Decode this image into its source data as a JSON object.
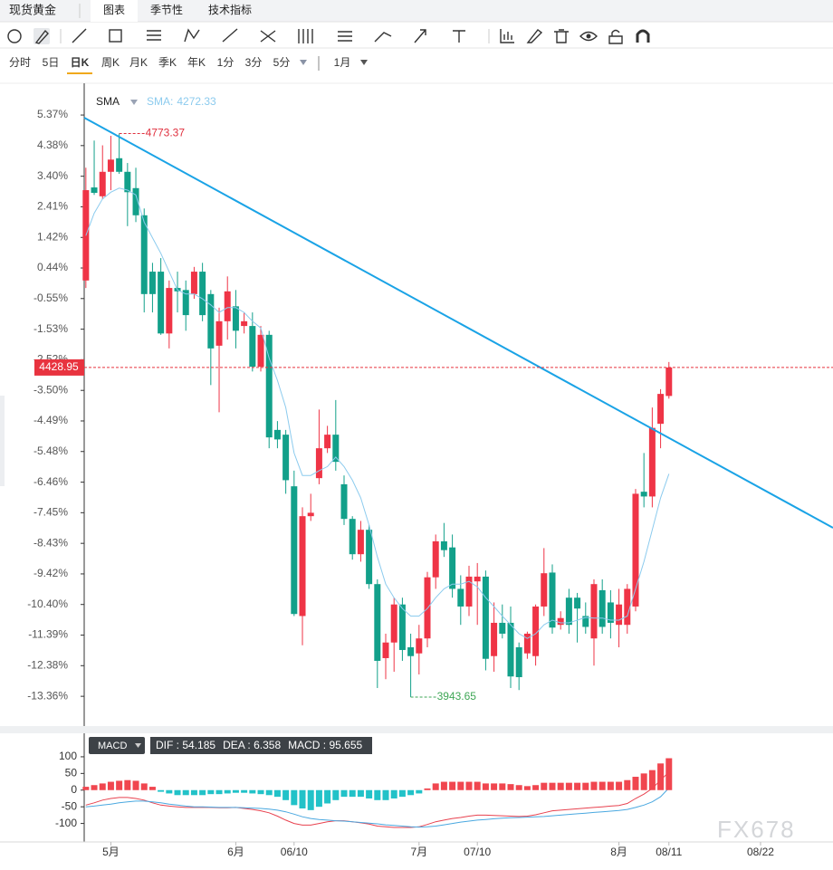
{
  "header": {
    "title": "现货黄金",
    "tabs": [
      "图表",
      "季节性",
      "技术指标"
    ],
    "selected_tab": "图表"
  },
  "periods": [
    "分时",
    "5日",
    "日K",
    "周K",
    "月K",
    "季K",
    "年K",
    "1分",
    "3分",
    "5分"
  ],
  "selected_period": "日K",
  "range": "1月",
  "watermark": "FX678",
  "chart_data": [
    {
      "type": "candlestick",
      "up_color": "#ef3446",
      "down_color": "#12a08a",
      "open": [
        4557,
        4694,
        4681,
        4717,
        4737,
        4717,
        4693,
        4653,
        4570,
        4570,
        4479,
        4546,
        4543,
        4537,
        4570,
        4537,
        4461,
        4497,
        4519,
        4490,
        4490,
        4430,
        4477,
        4337,
        4330,
        4254,
        4063,
        4210,
        4266,
        4310,
        4330,
        4257,
        4206,
        4154,
        4190,
        4110,
        4001,
        4024,
        4080,
        4017,
        4008,
        4030,
        4120,
        4173,
        4164,
        4103,
        4077,
        4114,
        4121,
        4004,
        4053,
        4053,
        4017,
        4008,
        4004,
        4077,
        4127,
        4050,
        4090,
        4090,
        4063,
        4030,
        4101,
        4083,
        4050,
        4050,
        4077,
        4246,
        4239,
        4346,
        4387
      ],
      "high": [
        4723,
        4763,
        4756,
        4770,
        4773.37,
        4730,
        4723,
        4663,
        4583,
        4590,
        4557,
        4570,
        4557,
        4577,
        4583,
        4543,
        4517,
        4563,
        4543,
        4510,
        4510,
        4490,
        4483,
        4350,
        4337,
        4277,
        4223,
        4243,
        4367,
        4343,
        4381,
        4270,
        4210,
        4203,
        4197,
        4117,
        4037,
        4090,
        4090,
        4037,
        4050,
        4128,
        4183,
        4200,
        4183,
        4123,
        4137,
        4141,
        4130,
        4083,
        4080,
        4077,
        4024,
        4040,
        4080,
        4163,
        4139,
        4070,
        4103,
        4097,
        4083,
        4117,
        4117,
        4101,
        4103,
        4110,
        4250,
        4303,
        4370,
        4397,
        4437
      ],
      "low": [
        4546,
        4683,
        4677,
        4690,
        4714,
        4637,
        4643,
        4510,
        4510,
        4477,
        4457,
        4510,
        4483,
        4530,
        4497,
        4403,
        4363,
        4470,
        4457,
        4479,
        4423,
        4423,
        4310,
        4310,
        4243,
        4063,
        4020,
        4203,
        4257,
        4303,
        4277,
        4197,
        4146,
        4143,
        4103,
        3957,
        3970,
        3981,
        3997,
        3943.65,
        3977,
        4017,
        4103,
        4150,
        4090,
        4050,
        4063,
        4050,
        3983,
        3981,
        4030,
        3957,
        3954,
        4000,
        3990,
        4063,
        4037,
        4043,
        4037,
        4024,
        4037,
        3990,
        4037,
        4030,
        4017,
        4037,
        4070,
        4223,
        4223,
        4310,
        4383
      ],
      "close": [
        4690,
        4686,
        4717,
        4735,
        4717,
        4687,
        4653,
        4537,
        4537,
        4479,
        4546,
        4541,
        4506,
        4570,
        4506,
        4457,
        4497,
        4541,
        4483,
        4497,
        4430,
        4477,
        4326,
        4323,
        4263,
        4066,
        4210,
        4215,
        4310,
        4330,
        4290,
        4206,
        4154,
        4190,
        4110,
        3997,
        4024,
        4080,
        4013,
        4004,
        4030,
        4120,
        4173,
        4160,
        4103,
        4077,
        4121,
        4121,
        4000,
        4053,
        4037,
        3974,
        3973,
        4037,
        4077,
        4126,
        4046,
        4060,
        4050,
        4074,
        4047,
        4110,
        4047,
        4053,
        4080,
        4103,
        4243,
        4239,
        4340,
        4390,
        4428.95
      ],
      "series": [
        {
          "name": "SMA",
          "legend_label": "SMA:",
          "color": "#8ccbee",
          "values": [
            4623,
            4656,
            4677,
            4687,
            4693,
            4690,
            4683,
            4643,
            4620,
            4597,
            4570,
            4543,
            4537,
            4537,
            4530,
            4521,
            4510,
            4517,
            4517,
            4510,
            4497,
            4487,
            4443,
            4410,
            4370,
            4303,
            4270,
            4270,
            4277,
            4283,
            4297,
            4283,
            4263,
            4237,
            4197,
            4150,
            4110,
            4090,
            4074,
            4063,
            4063,
            4074,
            4090,
            4103,
            4110,
            4110,
            4114,
            4106,
            4090,
            4077,
            4063,
            4050,
            4037,
            4030,
            4037,
            4050,
            4057,
            4053,
            4053,
            4057,
            4061,
            4060,
            4060,
            4057,
            4057,
            4063,
            4103,
            4143,
            4190,
            4237,
            4272.33
          ]
        }
      ],
      "xlim": [
        -0.2,
        89.7
      ],
      "ylim": [
        3901,
        4846
      ],
      "yticks": [
        {
          "value": 4800.6,
          "label": "5.37%"
        },
        {
          "value": 4755.6,
          "label": "4.38%"
        },
        {
          "value": 4710.5,
          "label": "3.40%"
        },
        {
          "value": 4665.5,
          "label": "2.41%"
        },
        {
          "value": 4620.4,
          "label": "1.42%"
        },
        {
          "value": 4575.4,
          "label": "0.44%"
        },
        {
          "value": 4530.4,
          "label": "-0.55%"
        },
        {
          "value": 4485.3,
          "label": "-1.53%"
        },
        {
          "value": 4440.3,
          "label": "-2.52%"
        },
        {
          "value": 4395.2,
          "label": "-3.50%"
        },
        {
          "value": 4350.2,
          "label": "-4.49%"
        },
        {
          "value": 4305.2,
          "label": "-5.48%"
        },
        {
          "value": 4260.1,
          "label": "-6.46%"
        },
        {
          "value": 4215.1,
          "label": "-7.45%"
        },
        {
          "value": 4170.0,
          "label": "-8.43%"
        },
        {
          "value": 4125.0,
          "label": "-9.42%"
        },
        {
          "value": 4080.0,
          "label": "-10.40%"
        },
        {
          "value": 4034.9,
          "label": "-11.39%"
        },
        {
          "value": 3989.9,
          "label": "-12.38%"
        },
        {
          "value": 3944.8,
          "label": "-13.36%"
        }
      ]
    },
    {
      "type": "macd",
      "title": "MACD",
      "separator": " : ",
      "series": [
        {
          "name": "DIF",
          "color": "#e8424f",
          "values": [
            -45,
            -38,
            -30,
            -25,
            -22,
            -22,
            -25,
            -30,
            -38,
            -45,
            -48,
            -50,
            -52,
            -52,
            -52,
            -52,
            -53,
            -53,
            -52,
            -55,
            -58,
            -62,
            -68,
            -78,
            -90,
            -100,
            -105,
            -105,
            -100,
            -95,
            -92,
            -92,
            -95,
            -98,
            -102,
            -108,
            -110,
            -112,
            -112,
            -112,
            -110,
            -103,
            -95,
            -90,
            -85,
            -82,
            -78,
            -75,
            -75,
            -76,
            -77,
            -78,
            -79,
            -78,
            -74,
            -68,
            -62,
            -60,
            -58,
            -56,
            -54,
            -52,
            -50,
            -48,
            -46,
            -40,
            -25,
            -12,
            5,
            30,
            54.185
          ]
        },
        {
          "name": "DEA",
          "color": "#4aa8e0",
          "values": [
            -50,
            -48,
            -45,
            -42,
            -38,
            -35,
            -33,
            -33,
            -35,
            -38,
            -42,
            -45,
            -48,
            -50,
            -50,
            -51,
            -52,
            -52,
            -52,
            -53,
            -54,
            -55,
            -57,
            -60,
            -65,
            -72,
            -80,
            -85,
            -88,
            -90,
            -92,
            -93,
            -95,
            -97,
            -99,
            -101,
            -104,
            -106,
            -108,
            -110,
            -111,
            -110,
            -108,
            -104,
            -100,
            -96,
            -93,
            -90,
            -88,
            -86,
            -84,
            -83,
            -82,
            -81,
            -80,
            -79,
            -77,
            -75,
            -73,
            -71,
            -69,
            -67,
            -65,
            -63,
            -61,
            -58,
            -52,
            -45,
            -35,
            -20,
            6.358
          ]
        },
        {
          "name": "MACD",
          "type": "bar",
          "up_color": "#f0464f",
          "down_color": "#22c2c8",
          "values": [
            10,
            15,
            20,
            25,
            28,
            30,
            28,
            20,
            10,
            -5,
            -10,
            -15,
            -15,
            -15,
            -15,
            -12,
            -12,
            -10,
            -8,
            -8,
            -10,
            -12,
            -15,
            -20,
            -30,
            -45,
            -55,
            -60,
            -50,
            -40,
            -30,
            -20,
            -20,
            -20,
            -25,
            -30,
            -30,
            -25,
            -20,
            -15,
            -10,
            5,
            20,
            25,
            25,
            25,
            25,
            25,
            20,
            20,
            20,
            18,
            15,
            12,
            15,
            22,
            22,
            22,
            22,
            22,
            22,
            25,
            25,
            25,
            25,
            30,
            40,
            50,
            60,
            80,
            95.655
          ]
        }
      ],
      "xlim": [
        -0.2,
        89.7
      ],
      "ylim": [
        -150,
        165
      ],
      "yticks": [
        100,
        50,
        0,
        -50,
        -100
      ],
      "xticks": [
        {
          "value": 3,
          "label": "5月"
        },
        {
          "value": 18,
          "label": "6月"
        },
        {
          "value": 25,
          "label": "06/10"
        },
        {
          "value": 40,
          "label": "7月"
        },
        {
          "value": 47,
          "label": "07/10"
        },
        {
          "value": 64,
          "label": "8月"
        },
        {
          "value": 70,
          "label": "08/11"
        },
        {
          "value": 81,
          "label": "08/22"
        }
      ]
    }
  ]
}
